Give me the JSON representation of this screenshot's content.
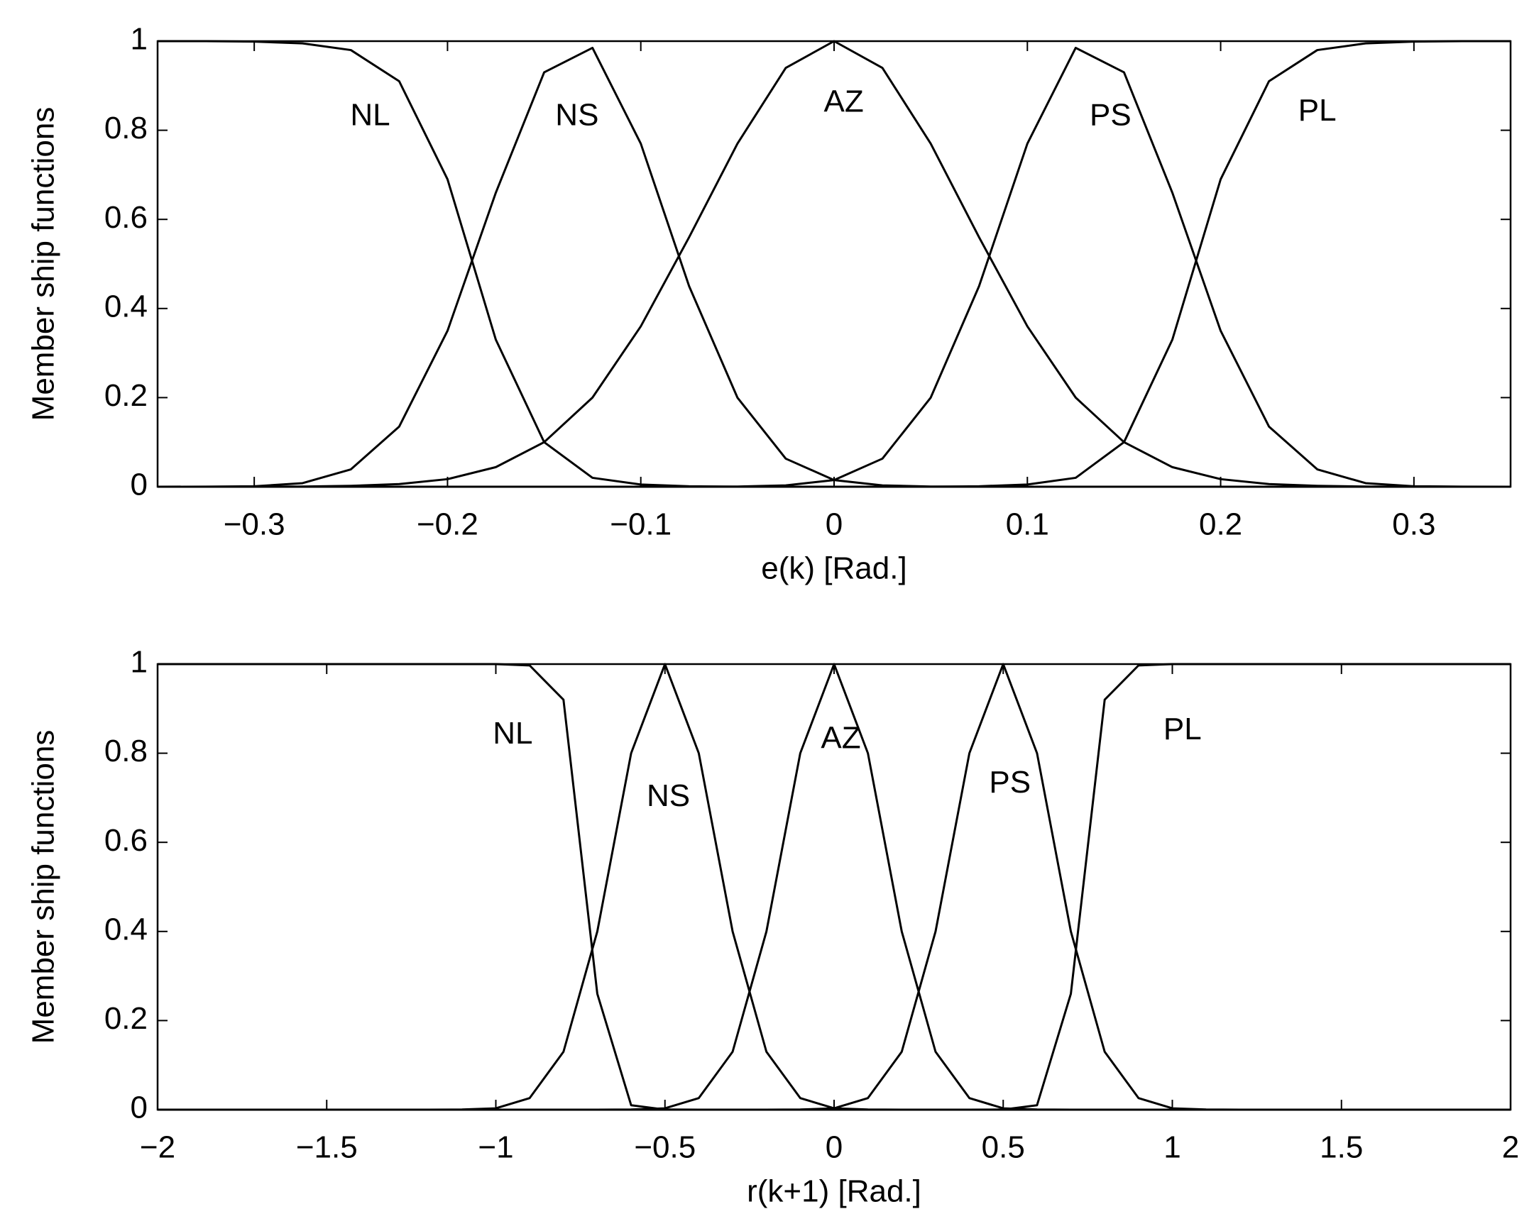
{
  "chart_data": [
    {
      "type": "line",
      "xlabel": "e(k) [Rad.]",
      "ylabel": "Member ship functions",
      "xlim": [
        -0.35,
        0.35
      ],
      "ylim": [
        0,
        1
      ],
      "xticks": [
        {
          "value": -0.3,
          "label": "−0.3"
        },
        {
          "value": -0.2,
          "label": "−0.2"
        },
        {
          "value": -0.1,
          "label": "−0.1"
        },
        0,
        0.1,
        0.2,
        0.3
      ],
      "yticks": [
        0,
        0.2,
        0.4,
        0.6,
        0.8,
        1
      ],
      "x": [
        -0.35,
        -0.325,
        -0.3,
        -0.275,
        -0.25,
        -0.225,
        -0.2,
        -0.175,
        -0.15,
        -0.125,
        -0.1,
        -0.075,
        -0.05,
        -0.025,
        0,
        0.025,
        0.05,
        0.075,
        0.1,
        0.125,
        0.15,
        0.175,
        0.2,
        0.225,
        0.25,
        0.275,
        0.3,
        0.325,
        0.35
      ],
      "series": [
        {
          "name": "NL",
          "color": "#000000",
          "values": [
            1,
            1,
            0.999,
            0.995,
            0.98,
            0.91,
            0.69,
            0.33,
            0.1,
            0.02,
            0.005,
            0.001,
            0,
            0,
            0,
            0,
            0,
            0,
            0,
            0,
            0,
            0,
            0,
            0,
            0,
            0,
            0,
            0,
            0
          ]
        },
        {
          "name": "NS",
          "color": "#000000",
          "values": [
            0,
            0.0002,
            0.001,
            0.008,
            0.039,
            0.135,
            0.35,
            0.66,
            0.93,
            0.985,
            0.77,
            0.45,
            0.2,
            0.063,
            0.015,
            0.003,
            0.0004,
            0,
            0,
            0,
            0,
            0,
            0,
            0,
            0,
            0,
            0,
            0,
            0
          ]
        },
        {
          "name": "AZ",
          "color": "#000000",
          "values": [
            0,
            0,
            0.0001,
            0.0004,
            0.002,
            0.006,
            0.017,
            0.044,
            0.1,
            0.2,
            0.36,
            0.56,
            0.77,
            0.94,
            1,
            0.94,
            0.77,
            0.56,
            0.36,
            0.2,
            0.1,
            0.044,
            0.017,
            0.006,
            0.002,
            0.0004,
            0.0001,
            0,
            0
          ]
        },
        {
          "name": "PS",
          "color": "#000000",
          "values": [
            0,
            0,
            0,
            0,
            0,
            0,
            0,
            0,
            0,
            0,
            0,
            0,
            0.0004,
            0.003,
            0.015,
            0.063,
            0.2,
            0.45,
            0.77,
            0.985,
            0.93,
            0.66,
            0.35,
            0.135,
            0.039,
            0.008,
            0.001,
            0.0002,
            0
          ]
        },
        {
          "name": "PL",
          "color": "#000000",
          "values": [
            0,
            0,
            0,
            0,
            0,
            0,
            0,
            0,
            0,
            0,
            0,
            0,
            0,
            0,
            0,
            0,
            0,
            0.001,
            0.005,
            0.02,
            0.1,
            0.33,
            0.69,
            0.91,
            0.98,
            0.995,
            0.999,
            1,
            1
          ]
        }
      ]
    },
    {
      "type": "line",
      "xlabel": "r(k+1) [Rad.]",
      "ylabel": "Member ship functions",
      "xlim": [
        -2,
        2
      ],
      "ylim": [
        0,
        1
      ],
      "xticks": [
        {
          "value": -2,
          "label": "−2"
        },
        {
          "value": -1.5,
          "label": "−1.5"
        },
        {
          "value": -1,
          "label": "−1"
        },
        {
          "value": -0.5,
          "label": "−0.5"
        },
        0,
        0.5,
        1,
        1.5,
        2
      ],
      "yticks": [
        0,
        0.2,
        0.4,
        0.6,
        0.8,
        1
      ],
      "x": [
        -2,
        -1.9,
        -1.8,
        -1.7,
        -1.6,
        -1.5,
        -1.4,
        -1.3,
        -1.2,
        -1.1,
        -1,
        -0.9,
        -0.8,
        -0.7,
        -0.6,
        -0.5,
        -0.4,
        -0.3,
        -0.2,
        -0.1,
        0,
        0.1,
        0.2,
        0.3,
        0.4,
        0.5,
        0.6,
        0.7,
        0.8,
        0.9,
        1,
        1.1,
        1.2,
        1.3,
        1.4,
        1.5,
        1.6,
        1.7,
        1.8,
        1.9,
        2
      ],
      "series": [
        {
          "name": "NL",
          "color": "#000000",
          "values": [
            1,
            1,
            1,
            1,
            1,
            1,
            1,
            1,
            1,
            1,
            1,
            0.997,
            0.92,
            0.26,
            0.01,
            0.0003,
            0,
            0,
            0,
            0,
            0,
            0,
            0,
            0,
            0,
            0,
            0,
            0,
            0,
            0,
            0,
            0,
            0,
            0,
            0,
            0,
            0,
            0,
            0,
            0,
            0
          ]
        },
        {
          "name": "NS",
          "color": "#000000",
          "values": [
            0,
            0,
            0,
            0,
            0,
            0,
            0,
            0,
            0,
            0.0003,
            0.003,
            0.026,
            0.13,
            0.4,
            0.8,
            1,
            0.8,
            0.4,
            0.13,
            0.026,
            0.003,
            0.0003,
            0,
            0,
            0,
            0,
            0,
            0,
            0,
            0,
            0,
            0,
            0,
            0,
            0,
            0,
            0,
            0,
            0,
            0,
            0
          ]
        },
        {
          "name": "AZ",
          "color": "#000000",
          "values": [
            0,
            0,
            0,
            0,
            0,
            0,
            0,
            0,
            0,
            0,
            0,
            0,
            0,
            0,
            0.0003,
            0.003,
            0.026,
            0.13,
            0.4,
            0.8,
            1,
            0.8,
            0.4,
            0.13,
            0.026,
            0.003,
            0.0003,
            0,
            0,
            0,
            0,
            0,
            0,
            0,
            0,
            0,
            0,
            0,
            0,
            0,
            0
          ]
        },
        {
          "name": "PS",
          "color": "#000000",
          "values": [
            0,
            0,
            0,
            0,
            0,
            0,
            0,
            0,
            0,
            0,
            0,
            0,
            0,
            0,
            0,
            0,
            0,
            0,
            0,
            0.0003,
            0.003,
            0.026,
            0.13,
            0.4,
            0.8,
            1,
            0.8,
            0.4,
            0.13,
            0.026,
            0.003,
            0.0003,
            0,
            0,
            0,
            0,
            0,
            0,
            0,
            0,
            0
          ]
        },
        {
          "name": "PL",
          "color": "#000000",
          "values": [
            0,
            0,
            0,
            0,
            0,
            0,
            0,
            0,
            0,
            0,
            0,
            0,
            0,
            0,
            0,
            0,
            0,
            0,
            0,
            0,
            0,
            0,
            0,
            0,
            0,
            0.0003,
            0.01,
            0.26,
            0.92,
            0.997,
            1,
            1,
            1,
            1,
            1,
            1,
            1,
            1,
            1,
            1,
            1
          ]
        }
      ]
    }
  ]
}
